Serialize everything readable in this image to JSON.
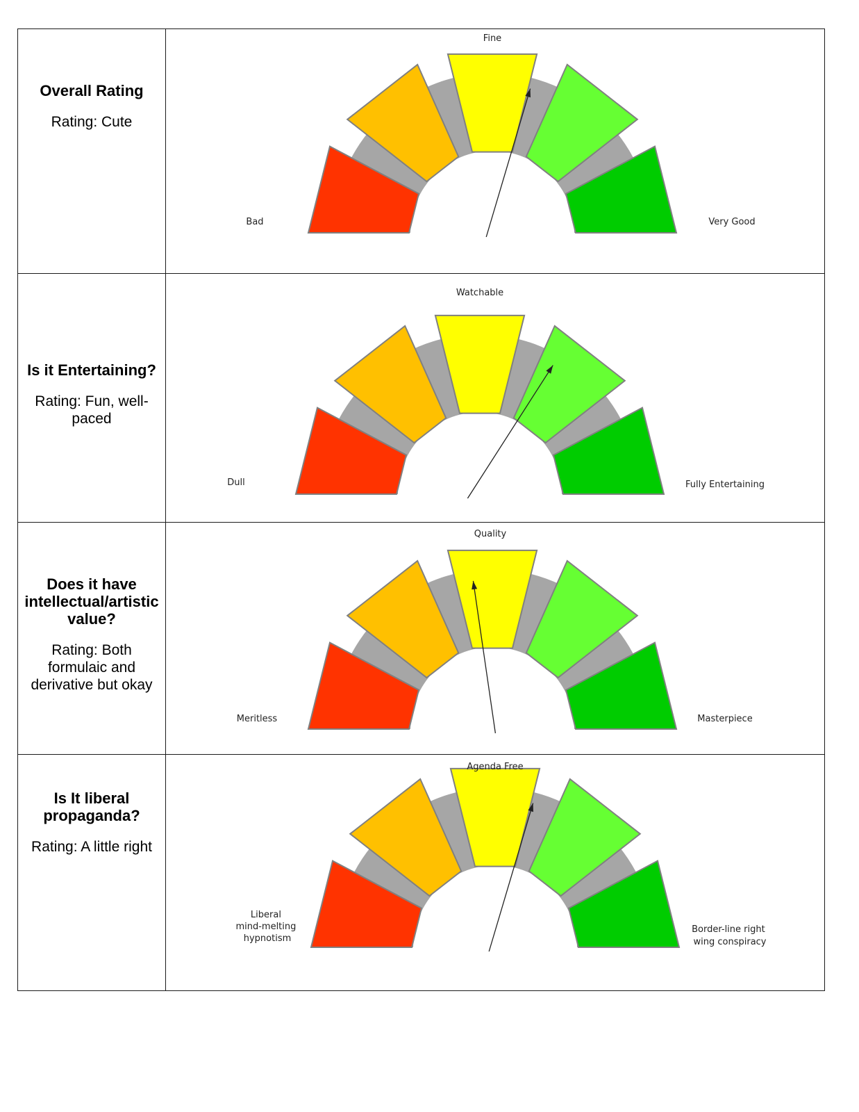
{
  "colors": {
    "seg1": "#ff3300",
    "seg2": "#ffc000",
    "seg3": "#ffff00",
    "seg4": "#66ff33",
    "seg5": "#00cc00",
    "arc": "#a6a6a6",
    "outline": "#808080",
    "needle": "#222222"
  },
  "rows": [
    {
      "question": "Overall Rating",
      "rating": "Rating: Cute",
      "labels": {
        "top": "Fine",
        "left": [
          "Bad"
        ],
        "right": [
          "Very Good"
        ]
      },
      "needle_position": 3.4
    },
    {
      "question": "Is it Entertaining?",
      "rating": "Rating: Fun, well-paced",
      "labels": {
        "top": "Watchable",
        "left": [
          "Dull"
        ],
        "right": [
          "Fully Entertaining"
        ]
      },
      "needle_position": 3.8
    },
    {
      "question": "Does it have intellectual/artistic value?",
      "rating": "Rating: Both formulaic and derivative but okay",
      "labels": {
        "top": "Quality",
        "left": [
          "Meritless"
        ],
        "right": [
          "Masterpiece"
        ]
      },
      "needle_position": 2.8
    },
    {
      "question": "Is It liberal propaganda?",
      "rating": "Rating: A little right",
      "labels": {
        "top": "Agenda Free",
        "left": [
          "Liberal",
          "mind-melting",
          "hypnotism"
        ],
        "right": [
          "Border-line right",
          "wing conspiracy"
        ]
      },
      "needle_position": 3.4
    }
  ]
}
